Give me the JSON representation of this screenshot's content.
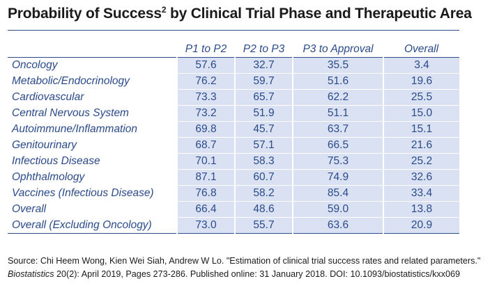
{
  "title": {
    "main": "Probability of Success",
    "superscript": "2",
    "rest": " by Clinical Trial Phase and Therapeutic Area"
  },
  "table": {
    "columns": [
      "",
      "P1 to P2",
      "P2 to P3",
      "P3 to Approval",
      "Overall"
    ],
    "rows": [
      {
        "area": "Oncology",
        "p1_p2": "57.6",
        "p2_p3": "32.7",
        "p3_approval": "35.5",
        "overall": "3.4"
      },
      {
        "area": "Metabolic/Endocrinology",
        "p1_p2": "76.2",
        "p2_p3": "59.7",
        "p3_approval": "51.6",
        "overall": "19.6"
      },
      {
        "area": "Cardiovascular",
        "p1_p2": "73.3",
        "p2_p3": "65.7",
        "p3_approval": "62.2",
        "overall": "25.5"
      },
      {
        "area": "Central Nervous System",
        "p1_p2": "73.2",
        "p2_p3": "51.9",
        "p3_approval": "51.1",
        "overall": "15.0"
      },
      {
        "area": "Autoimmune/Inflammation",
        "p1_p2": "69.8",
        "p2_p3": "45.7",
        "p3_approval": "63.7",
        "overall": "15.1"
      },
      {
        "area": "Genitourinary",
        "p1_p2": "68.7",
        "p2_p3": "57.1",
        "p3_approval": "66.5",
        "overall": "21.6"
      },
      {
        "area": "Infectious Disease",
        "p1_p2": "70.1",
        "p2_p3": "58.3",
        "p3_approval": "75.3",
        "overall": "25.2"
      },
      {
        "area": "Ophthalmology",
        "p1_p2": "87.1",
        "p2_p3": "60.7",
        "p3_approval": "74.9",
        "overall": "32.6"
      },
      {
        "area": "Vaccines (Infectious Disease)",
        "p1_p2": "76.8",
        "p2_p3": "58.2",
        "p3_approval": "85.4",
        "overall": "33.4"
      },
      {
        "area": "Overall",
        "p1_p2": "66.4",
        "p2_p3": "48.6",
        "p3_approval": "59.0",
        "overall": "13.8"
      },
      {
        "area": "Overall (Excluding Oncology)",
        "p1_p2": "73.0",
        "p2_p3": "55.7",
        "p3_approval": "63.6",
        "overall": "20.9"
      }
    ]
  },
  "source": {
    "prefix": "Source: Chi Heem Wong, Kien Wei Siah, Andrew W Lo. \"Estimation of clinical trial success rates and related parameters.\" ",
    "journal": "Biostatistics",
    "suffix": " 20(2): April 2019, Pages 273-286. Published online: 31 January 2018. DOI: 10.1093/biostatistics/kxx069"
  },
  "colors": {
    "text_blue": "#2a4a8a",
    "cell_fill": "#d9e1f2",
    "rule": "#2e4d8a"
  }
}
